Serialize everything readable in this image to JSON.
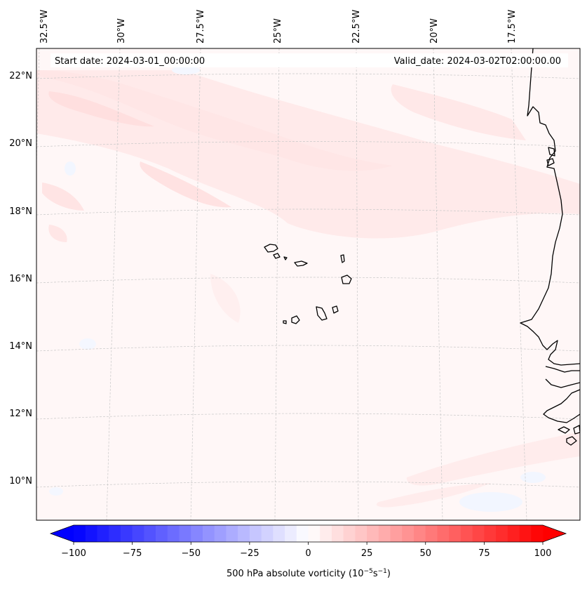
{
  "map": {
    "start_date": "Start date: 2024-03-01_00:00:00",
    "valid_date": "Valid_date: 2024-03-02T02:00:00.00",
    "lon_labels": [
      "32.5°W",
      "30°W",
      "27.5°W",
      "25°W",
      "22.5°W",
      "20°W",
      "17.5°W"
    ],
    "lat_labels": [
      "22°N",
      "20°N",
      "18°N",
      "16°N",
      "14°N",
      "12°N",
      "10°N"
    ],
    "field": "500 hPa absolute vorticity",
    "colors": {
      "background_field": "#fff7f7",
      "weak_positive": "#ffe8e8",
      "moderate_positive": "#ffdede",
      "weak_negative": "#f2f6ff",
      "coast": "#000000",
      "grid": "#cccccc"
    }
  },
  "colorbar": {
    "label_prefix": "500 hPa absolute vorticity (10",
    "label_exp1": "−5",
    "label_mid": "s",
    "label_exp2": "−1",
    "label_suffix": ")",
    "min": -100,
    "max": 100,
    "step": 5,
    "ticks": [
      "−100",
      "−75",
      "−50",
      "−25",
      "0",
      "25",
      "50",
      "75",
      "100"
    ],
    "tick_values": [
      -100,
      -75,
      -50,
      -25,
      0,
      25,
      50,
      75,
      100
    ],
    "cmap": "bwr"
  }
}
